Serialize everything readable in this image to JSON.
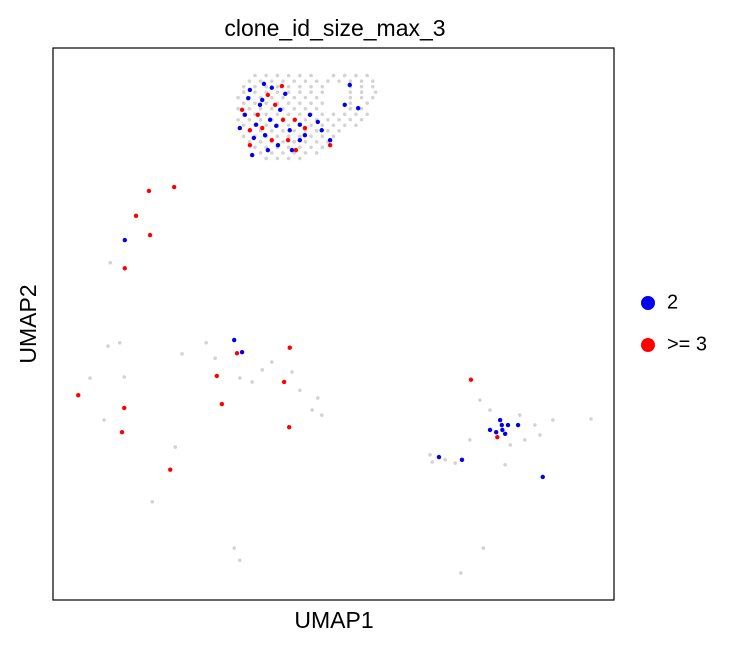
{
  "chart_data": {
    "type": "scatter",
    "title": "clone_id_size_max_3",
    "x_label": "UMAP1",
    "y_label": "UMAP2",
    "xlim": [
      0,
      100
    ],
    "ylim": [
      0,
      100
    ],
    "series": [
      {
        "color": "#d3d3d3",
        "x": [
          36,
          38,
          40,
          42,
          44,
          46,
          50,
          52,
          54,
          56,
          35,
          37,
          39,
          41,
          43,
          45,
          47,
          49,
          51,
          53,
          55,
          57,
          34,
          36,
          38,
          40,
          42,
          44,
          46,
          48,
          53,
          55,
          57,
          34,
          36,
          38,
          40,
          42,
          44,
          46,
          48,
          53,
          55,
          57.5,
          33,
          35,
          37,
          39,
          41,
          43,
          45,
          47,
          53,
          55,
          57,
          34,
          36,
          38,
          40,
          42,
          44,
          46,
          48,
          53,
          56,
          33,
          35,
          37,
          39,
          41,
          43,
          45,
          47,
          53,
          55,
          34,
          36,
          38,
          40,
          42,
          44,
          46,
          48,
          50,
          52,
          54,
          56,
          33,
          35,
          37,
          39,
          41,
          43,
          45,
          47,
          49,
          51,
          53,
          55,
          34,
          36,
          38,
          40,
          42,
          44,
          46,
          48,
          50,
          52,
          54,
          35,
          37,
          39,
          41,
          43,
          45,
          47,
          49,
          51,
          34,
          36,
          38,
          40,
          42,
          44,
          46,
          48,
          50,
          35,
          37,
          39,
          41,
          43,
          45,
          47,
          49,
          36,
          38,
          40,
          42,
          44,
          46,
          48,
          37,
          39,
          41,
          43,
          45,
          47,
          38,
          40,
          42,
          44,
          10.2,
          9.8,
          11.9,
          12.7,
          6.6,
          9.1,
          17.7,
          23,
          27.3,
          28.9,
          33.3,
          35.5,
          37.3,
          39,
          42.6,
          44,
          46.2,
          47.2,
          47.9,
          21.8,
          32.3,
          33.3,
          72.7,
          76.7,
          95.9,
          89.1,
          85.9,
          83.2,
          77.9,
          76.1,
          74.3,
          67.2,
          69.9,
          71.7,
          67.6,
          81.5,
          84.1,
          80.6,
          86.8
        ],
        "values": [
          95,
          95,
          95,
          95,
          95,
          95,
          95,
          95,
          95,
          95,
          94,
          94,
          94,
          94,
          94,
          94,
          94,
          94,
          94,
          94,
          94,
          94,
          93,
          93,
          93,
          93,
          93,
          93,
          93,
          93,
          93,
          93,
          93,
          92,
          92,
          92,
          92,
          92,
          92,
          92,
          92,
          92,
          92,
          92,
          91,
          91,
          91,
          91,
          91,
          91,
          91,
          91,
          91,
          91,
          91,
          90,
          90,
          90,
          90,
          90,
          90,
          90,
          90,
          90,
          90,
          89,
          89,
          89,
          89,
          89,
          89,
          89,
          89,
          89,
          89,
          88,
          88,
          88,
          88,
          88,
          88,
          88,
          88,
          88,
          88,
          88,
          88,
          87,
          87,
          87,
          87,
          87,
          87,
          87,
          87,
          87,
          87,
          87,
          87,
          86,
          86,
          86,
          86,
          86,
          86,
          86,
          86,
          86,
          86,
          86,
          85,
          85,
          85,
          85,
          85,
          85,
          85,
          85,
          85,
          84,
          84,
          84,
          84,
          84,
          84,
          84,
          84,
          84,
          83,
          83,
          83,
          83,
          83,
          83,
          83,
          83,
          82,
          82,
          82,
          82,
          82,
          82,
          82,
          81,
          81,
          81,
          81,
          81,
          81,
          80,
          80,
          80,
          80,
          61.1,
          46,
          46.6,
          40.4,
          40.2,
          32.6,
          17.8,
          44.6,
          46.6,
          43.8,
          40.2,
          39.5,
          41.7,
          43.1,
          41.3,
          38,
          34.4,
          36.6,
          33.5,
          27.7,
          9.4,
          7.2,
          4.9,
          9.4,
          32.8,
          32.6,
          31.7,
          33.5,
          34.4,
          36.2,
          29,
          26.3,
          25.4,
          24.8,
          25,
          28.1,
          29,
          24.5,
          29.9
        ]
      },
      {
        "name": "2",
        "color": "#0000ee",
        "x": [
          35.1,
          37.3,
          39.0,
          40.5,
          36.2,
          37.8,
          42.2,
          44.0,
          34.2,
          38.7,
          41.4,
          35.5,
          38.3,
          44.0,
          45.8,
          47.2,
          52.9,
          52.0,
          54.4,
          49.4,
          47.9,
          36.9,
          40.1,
          42.6,
          34.8,
          39.8,
          35.8,
          37.6,
          44.9,
          33.3,
          12.8,
          32.3,
          33.7,
          68.8,
          72.9,
          87.3,
          79.7,
          80.0,
          80.1,
          80.6,
          77.9,
          81.1,
          82.9,
          79
        ],
        "values": [
          92.4,
          90.6,
          92.8,
          88.8,
          86.1,
          84.2,
          85.1,
          83.3,
          87.9,
          87.0,
          91.7,
          80.6,
          81.5,
          86.1,
          87.9,
          86.6,
          93.3,
          89.7,
          89.1,
          83.3,
          85.1,
          89.7,
          82.4,
          81.5,
          90.9,
          85.9,
          83.7,
          93.5,
          84.2,
          85.5,
          65.2,
          47.1,
          44.9,
          25.9,
          25.4,
          22.3,
          32.6,
          31.7,
          30.8,
          30.1,
          30.8,
          31.7,
          31.7,
          30.4
        ]
      },
      {
        "name": ">= 3",
        "color": "#ff0000",
        "x": [
          40.8,
          38.3,
          39.6,
          36.5,
          35.1,
          37.3,
          43.1,
          43.3,
          44.9,
          41.9,
          39.0,
          35.1,
          49.4,
          41.0,
          33.7,
          17.1,
          21.6,
          14.8,
          17.3,
          12.8,
          4.5,
          12.7,
          12.3,
          20.9,
          29.2,
          30.1,
          32.8,
          42.2,
          41.2,
          42.1,
          74.5,
          79.2
        ],
        "values": [
          93.1,
          91.5,
          89.7,
          87.9,
          85.1,
          85.5,
          87.0,
          81.5,
          85.5,
          83.3,
          83.3,
          82.4,
          82.4,
          87.0,
          88.8,
          74.1,
          74.8,
          69.6,
          66.1,
          60.1,
          37.1,
          34.8,
          30.4,
          23.6,
          40.6,
          35.5,
          44.7,
          45.7,
          39.5,
          31.3,
          39.9,
          29.5
        ]
      }
    ]
  }
}
